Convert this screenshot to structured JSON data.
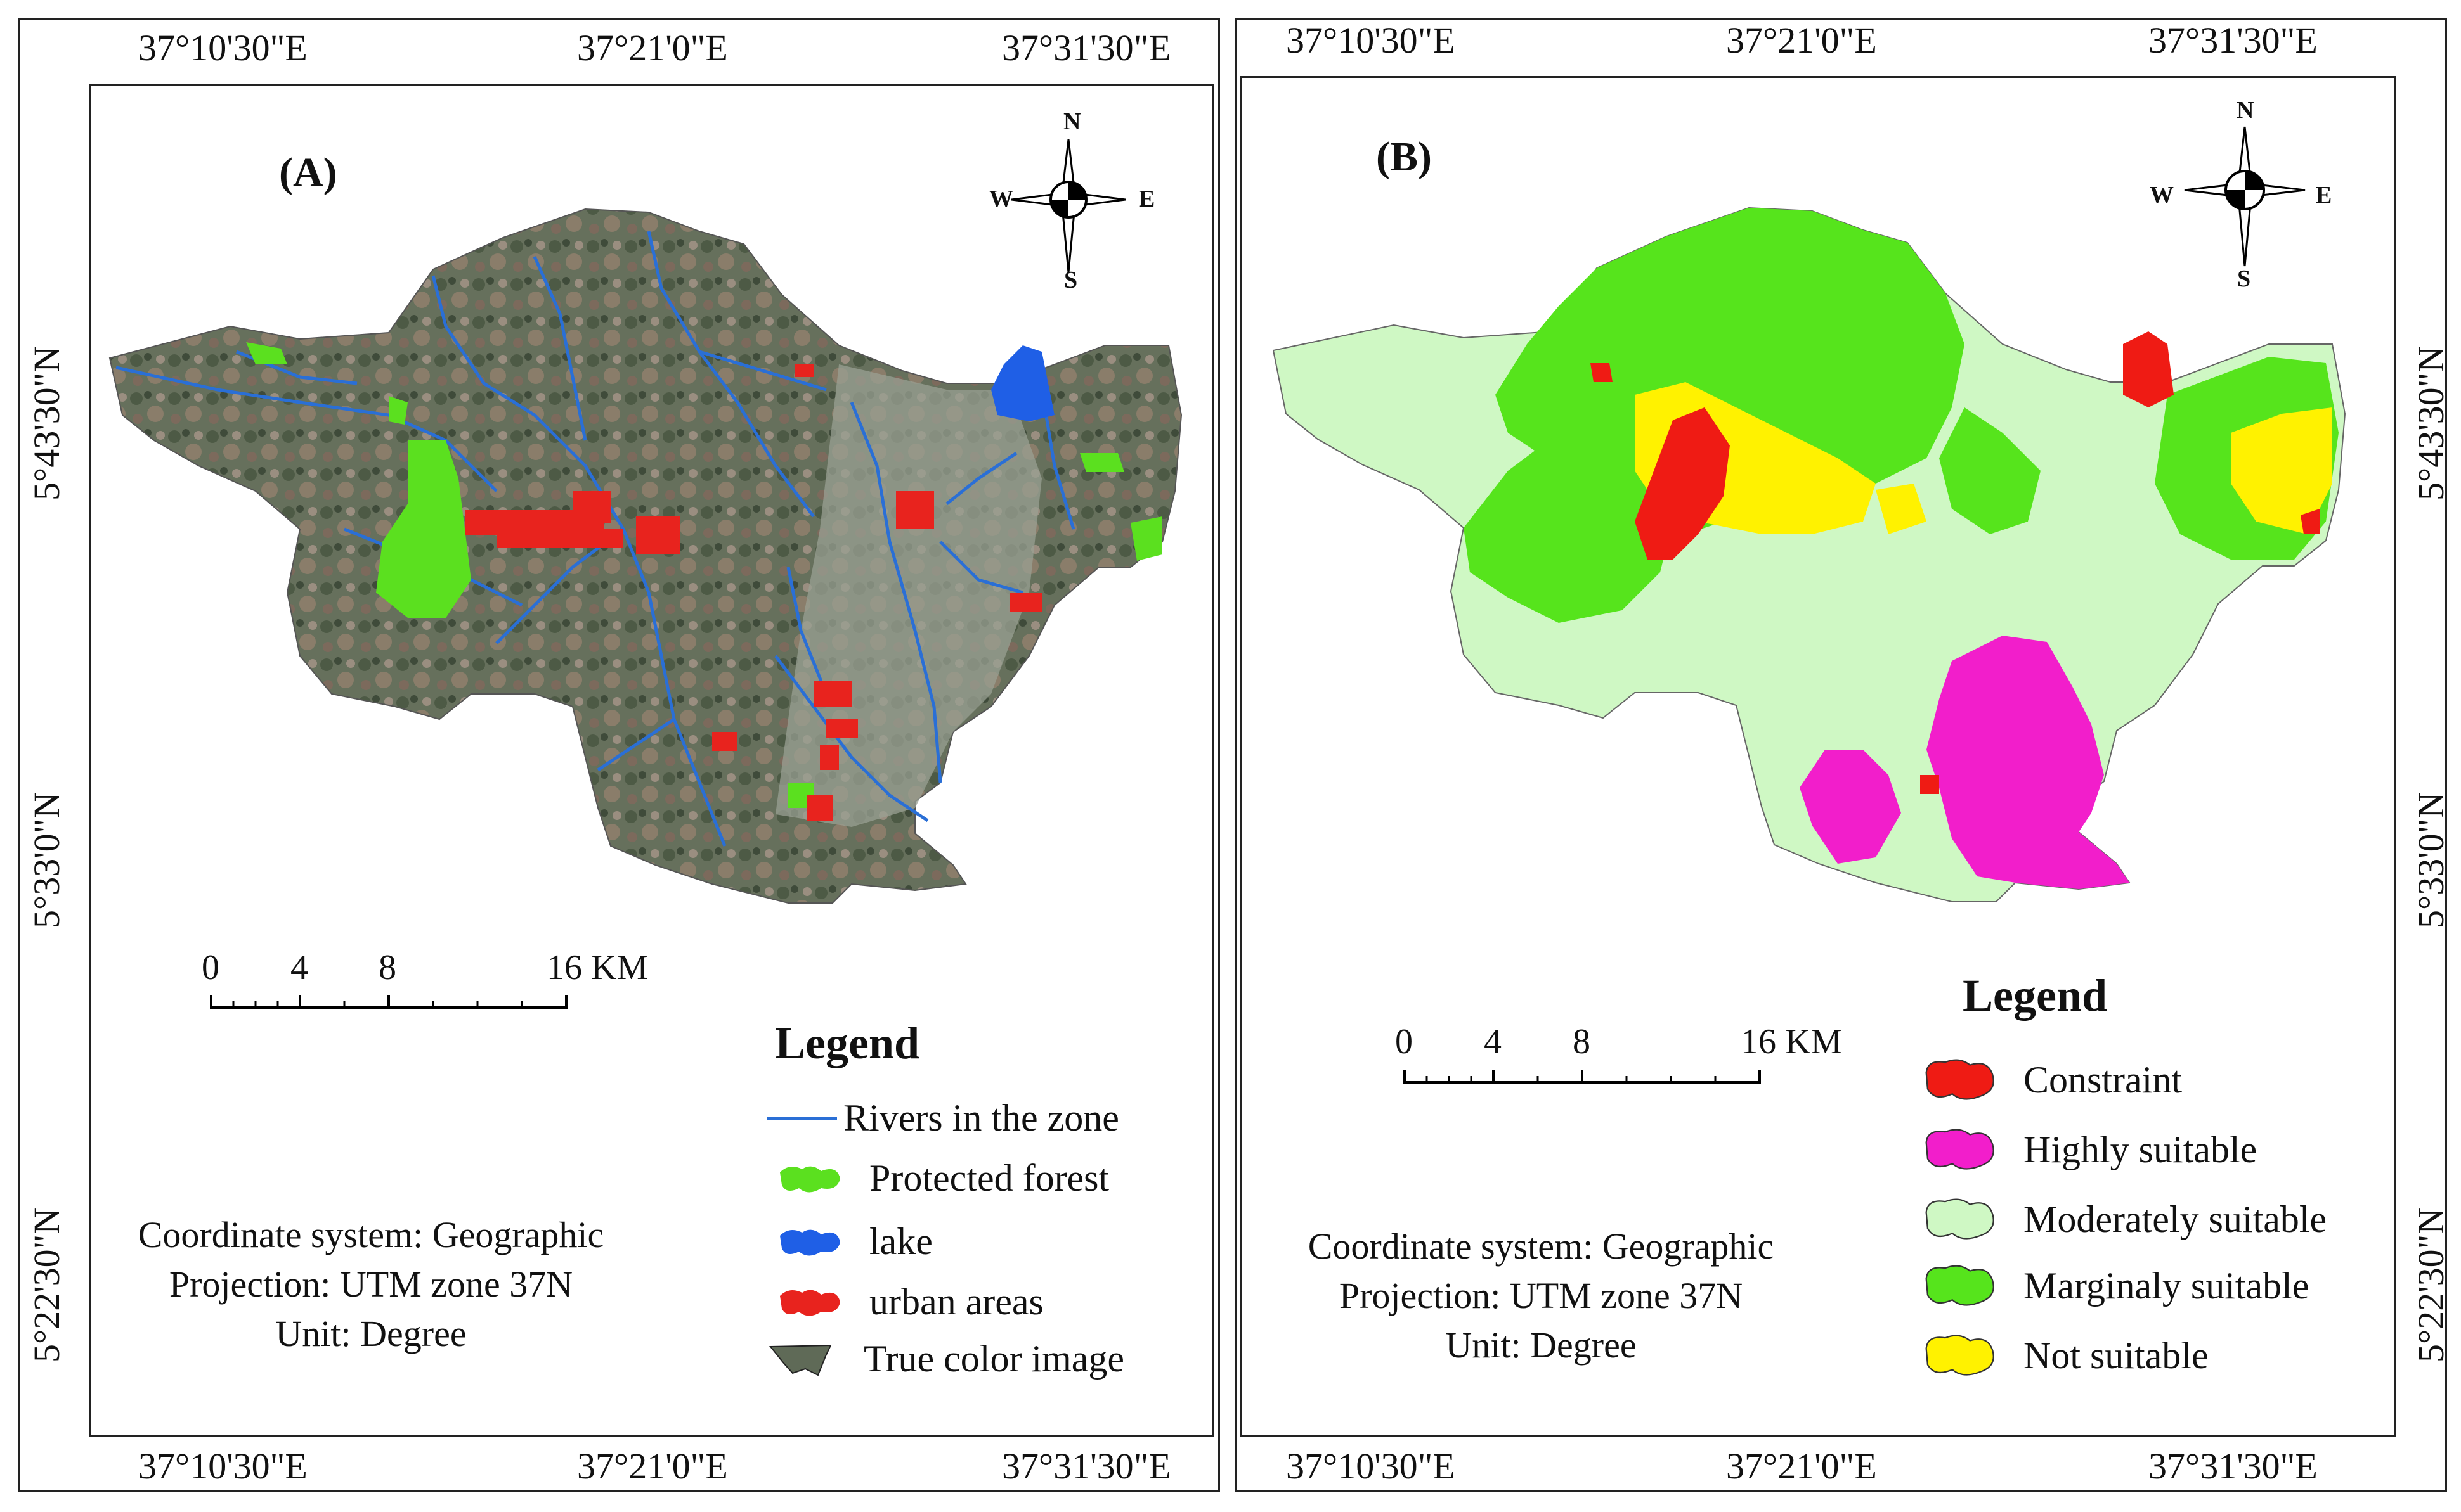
{
  "panel_a": {
    "label": "(A)",
    "top_ticks": [
      "37°10'30\"E",
      "37°21'0\"E",
      "37°31'30\"E"
    ],
    "bottom_ticks": [
      "37°10'30\"E",
      "37°21'0\"E",
      "37°31'30\"E"
    ],
    "left_ticks": [
      "5°43'30\"N",
      "5°33'0\"N",
      "5°22'30\"N"
    ],
    "compass": {
      "n": "N",
      "s": "S",
      "e": "E",
      "w": "W"
    },
    "scale": {
      "labels": [
        "0",
        "4",
        "8",
        "16 KM"
      ]
    },
    "legend": {
      "title": "Legend",
      "items": [
        {
          "label": "Rivers in the zone",
          "color": "#2a6fd6",
          "icon": "river-line-icon"
        },
        {
          "label": "Protected forest",
          "color": "#5be01f",
          "icon": "protected-forest-swatch-icon"
        },
        {
          "label": "lake",
          "color": "#1f5fe6",
          "icon": "lake-swatch-icon"
        },
        {
          "label": "urban areas",
          "color": "#e8231e",
          "icon": "urban-swatch-icon"
        },
        {
          "label": "True color image",
          "color": "#5f6a57",
          "icon": "true-color-swatch-icon"
        }
      ]
    },
    "coord_info": [
      "Coordinate system: Geographic",
      "Projection: UTM zone 37N",
      "Unit: Degree"
    ]
  },
  "panel_b": {
    "label": "(B)",
    "top_ticks": [
      "37°10'30\"E",
      "37°21'0\"E",
      "37°31'30\"E"
    ],
    "bottom_ticks": [
      "37°10'30\"E",
      "37°21'0\"E",
      "37°31'30\"E"
    ],
    "right_ticks": [
      "5°43'30\"N",
      "5°33'0\"N",
      "5°22'30\"N"
    ],
    "compass": {
      "n": "N",
      "s": "S",
      "e": "E",
      "w": "W"
    },
    "scale": {
      "labels": [
        "0",
        "4",
        "8",
        "16 KM"
      ]
    },
    "legend": {
      "title": "Legend",
      "items": [
        {
          "label": "Constraint",
          "color": "#ef1b14",
          "icon": "constraint-swatch-icon"
        },
        {
          "label": "Highly suitable",
          "color": "#f21ecb",
          "icon": "highly-suitable-swatch-icon"
        },
        {
          "label": "Moderately suitable",
          "color": "#cff8c4",
          "icon": "moderately-suitable-swatch-icon"
        },
        {
          "label": "Marginaly suitable",
          "color": "#56e41c",
          "icon": "marginaly-suitable-swatch-icon"
        },
        {
          "label": "Not suitable",
          "color": "#fff200",
          "icon": "not-suitable-swatch-icon"
        }
      ]
    },
    "coord_info": [
      "Coordinate system: Geographic",
      "Projection: UTM zone 37N",
      "Unit: Degree"
    ]
  }
}
